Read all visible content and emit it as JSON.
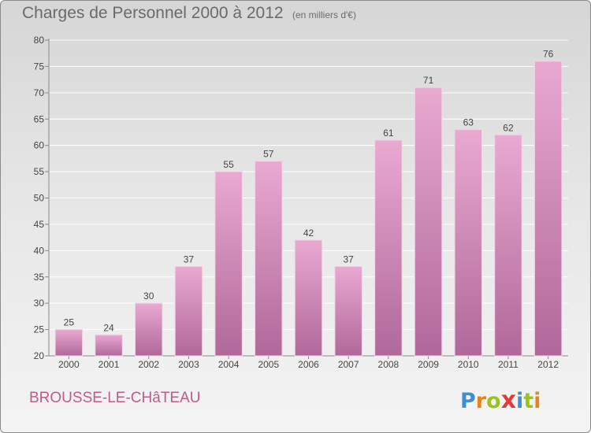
{
  "header": {
    "title": "Charges de Personnel 2000 à 2012",
    "subtitle": "(en milliers d'€)"
  },
  "footer": {
    "location": "BROUSSE-LE-CHâTEAU",
    "logo_letters": [
      {
        "ch": "P",
        "color": "#3b8fd4"
      },
      {
        "ch": "r",
        "color": "#e8821e"
      },
      {
        "ch": "o",
        "color": "#9bc31c"
      },
      {
        "ch": "x",
        "color": "#e23b3b"
      },
      {
        "ch": "i",
        "color": "#3b8fd4"
      },
      {
        "ch": "t",
        "color": "#9bc31c"
      },
      {
        "ch": "i",
        "color": "#e8821e"
      }
    ]
  },
  "colors": {
    "bar_top": "#e9a9d1",
    "bar_bottom": "#b0689a",
    "axis": "#888888",
    "grid": "#ffffff",
    "label": "#444444"
  },
  "chart_data": {
    "type": "bar",
    "title": "Charges de Personnel 2000 à 2012",
    "subtitle": "(en milliers d'€)",
    "xlabel": "",
    "ylabel": "",
    "categories": [
      "2000",
      "2001",
      "2002",
      "2003",
      "2004",
      "2005",
      "2006",
      "2007",
      "2008",
      "2009",
      "2010",
      "2011",
      "2012"
    ],
    "values": [
      25,
      24,
      30,
      37,
      55,
      57,
      42,
      37,
      61,
      71,
      63,
      62,
      76
    ],
    "ylim": [
      20,
      80
    ],
    "yticks": [
      20,
      25,
      30,
      35,
      40,
      45,
      50,
      55,
      60,
      65,
      70,
      75,
      80
    ],
    "grid": true,
    "data_labels": true
  }
}
